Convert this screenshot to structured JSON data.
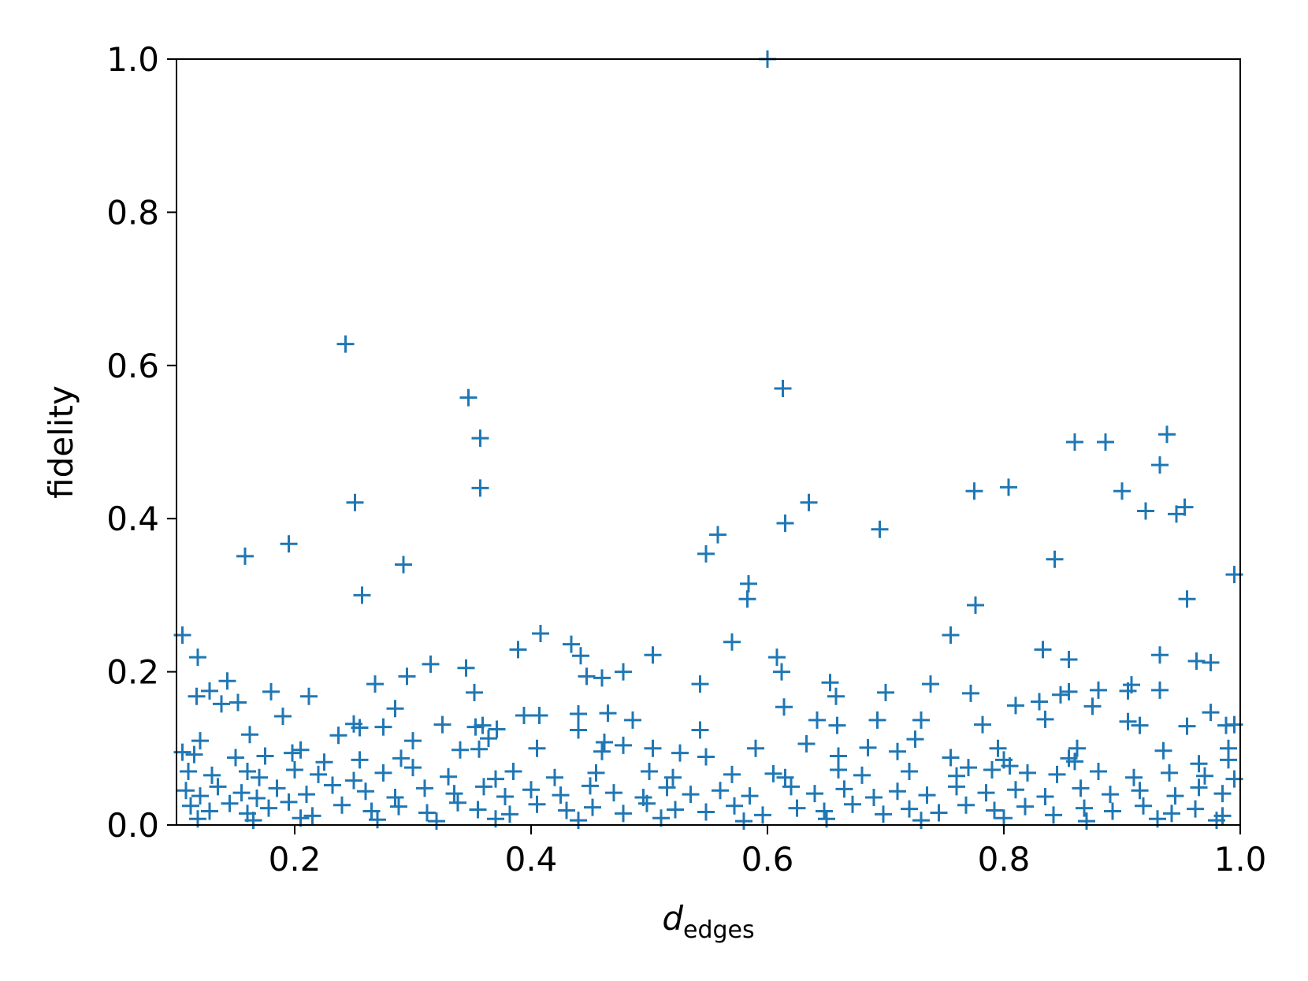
{
  "chart_data": {
    "type": "scatter",
    "title": "",
    "xlabel": "d",
    "xlabel_subscript": "edges",
    "ylabel": "fidelity",
    "xlim": [
      0.1,
      1.0
    ],
    "ylim": [
      0.0,
      1.0
    ],
    "xticks": [
      "0.2",
      "0.4",
      "0.6",
      "0.8",
      "1.0"
    ],
    "yticks": [
      "0.0",
      "0.2",
      "0.4",
      "0.6",
      "0.8",
      "1.0"
    ],
    "grid": false,
    "legend": "none",
    "marker": "plus",
    "color": "#1f77b4",
    "series": [
      {
        "points": [
          [
            0.6,
            1.0
          ],
          [
            0.243,
            0.628
          ],
          [
            0.347,
            0.558
          ],
          [
            0.613,
            0.57
          ],
          [
            0.357,
            0.505
          ],
          [
            0.86,
            0.5
          ],
          [
            0.886,
            0.5
          ],
          [
            0.938,
            0.51
          ],
          [
            0.932,
            0.47
          ],
          [
            0.357,
            0.44
          ],
          [
            0.251,
            0.421
          ],
          [
            0.635,
            0.421
          ],
          [
            0.775,
            0.436
          ],
          [
            0.804,
            0.441
          ],
          [
            0.9,
            0.436
          ],
          [
            0.946,
            0.406
          ],
          [
            0.953,
            0.415
          ],
          [
            0.92,
            0.41
          ],
          [
            0.615,
            0.394
          ],
          [
            0.695,
            0.386
          ],
          [
            0.558,
            0.379
          ],
          [
            0.548,
            0.354
          ],
          [
            0.158,
            0.351
          ],
          [
            0.195,
            0.367
          ],
          [
            0.292,
            0.34
          ],
          [
            0.843,
            0.347
          ],
          [
            0.995,
            0.327
          ],
          [
            0.584,
            0.315
          ],
          [
            0.583,
            0.295
          ],
          [
            0.257,
            0.3
          ],
          [
            0.776,
            0.287
          ],
          [
            0.955,
            0.295
          ],
          [
            0.105,
            0.248
          ],
          [
            0.408,
            0.25
          ],
          [
            0.57,
            0.239
          ],
          [
            0.755,
            0.248
          ],
          [
            0.118,
            0.219
          ],
          [
            0.434,
            0.236
          ],
          [
            0.442,
            0.221
          ],
          [
            0.389,
            0.229
          ],
          [
            0.503,
            0.222
          ],
          [
            0.608,
            0.219
          ],
          [
            0.833,
            0.229
          ],
          [
            0.855,
            0.216
          ],
          [
            0.932,
            0.222
          ],
          [
            0.963,
            0.214
          ],
          [
            0.975,
            0.212
          ],
          [
            0.315,
            0.21
          ],
          [
            0.345,
            0.205
          ],
          [
            0.612,
            0.2
          ],
          [
            0.478,
            0.2
          ],
          [
            0.46,
            0.192
          ],
          [
            0.447,
            0.194
          ],
          [
            0.295,
            0.194
          ],
          [
            0.143,
            0.188
          ],
          [
            0.543,
            0.184
          ],
          [
            0.653,
            0.186
          ],
          [
            0.738,
            0.184
          ],
          [
            0.908,
            0.183
          ],
          [
            0.117,
            0.168
          ],
          [
            0.128,
            0.175
          ],
          [
            0.138,
            0.158
          ],
          [
            0.152,
            0.16
          ],
          [
            0.18,
            0.174
          ],
          [
            0.212,
            0.168
          ],
          [
            0.268,
            0.184
          ],
          [
            0.352,
            0.173
          ],
          [
            0.658,
            0.168
          ],
          [
            0.7,
            0.173
          ],
          [
            0.772,
            0.172
          ],
          [
            0.848,
            0.17
          ],
          [
            0.855,
            0.174
          ],
          [
            0.88,
            0.176
          ],
          [
            0.905,
            0.175
          ],
          [
            0.932,
            0.176
          ],
          [
            0.614,
            0.154
          ],
          [
            0.81,
            0.156
          ],
          [
            0.83,
            0.161
          ],
          [
            0.875,
            0.155
          ],
          [
            0.975,
            0.147
          ],
          [
            0.285,
            0.152
          ],
          [
            0.19,
            0.142
          ],
          [
            0.394,
            0.143
          ],
          [
            0.407,
            0.143
          ],
          [
            0.44,
            0.145
          ],
          [
            0.465,
            0.146
          ],
          [
            0.486,
            0.137
          ],
          [
            0.642,
            0.137
          ],
          [
            0.659,
            0.13
          ],
          [
            0.693,
            0.137
          ],
          [
            0.73,
            0.137
          ],
          [
            0.782,
            0.131
          ],
          [
            0.835,
            0.138
          ],
          [
            0.905,
            0.135
          ],
          [
            0.915,
            0.13
          ],
          [
            0.955,
            0.129
          ],
          [
            0.988,
            0.13
          ],
          [
            0.995,
            0.131
          ],
          [
            0.25,
            0.132
          ],
          [
            0.255,
            0.127
          ],
          [
            0.275,
            0.128
          ],
          [
            0.325,
            0.131
          ],
          [
            0.353,
            0.128
          ],
          [
            0.359,
            0.13
          ],
          [
            0.371,
            0.125
          ],
          [
            0.44,
            0.124
          ],
          [
            0.543,
            0.124
          ],
          [
            0.725,
            0.112
          ],
          [
            0.12,
            0.11
          ],
          [
            0.162,
            0.118
          ],
          [
            0.237,
            0.117
          ],
          [
            0.3,
            0.11
          ],
          [
            0.364,
            0.113
          ],
          [
            0.462,
            0.108
          ],
          [
            0.478,
            0.104
          ],
          [
            0.503,
            0.1
          ],
          [
            0.59,
            0.1
          ],
          [
            0.633,
            0.106
          ],
          [
            0.685,
            0.101
          ],
          [
            0.795,
            0.1
          ],
          [
            0.862,
            0.1
          ],
          [
            0.935,
            0.097
          ],
          [
            0.99,
            0.1
          ],
          [
            0.105,
            0.095
          ],
          [
            0.115,
            0.092
          ],
          [
            0.15,
            0.088
          ],
          [
            0.175,
            0.09
          ],
          [
            0.198,
            0.094
          ],
          [
            0.205,
            0.098
          ],
          [
            0.225,
            0.082
          ],
          [
            0.255,
            0.085
          ],
          [
            0.29,
            0.087
          ],
          [
            0.34,
            0.098
          ],
          [
            0.356,
            0.099
          ],
          [
            0.405,
            0.1
          ],
          [
            0.46,
            0.096
          ],
          [
            0.526,
            0.094
          ],
          [
            0.548,
            0.089
          ],
          [
            0.605,
            0.067
          ],
          [
            0.66,
            0.09
          ],
          [
            0.71,
            0.096
          ],
          [
            0.755,
            0.088
          ],
          [
            0.77,
            0.075
          ],
          [
            0.8,
            0.085
          ],
          [
            0.805,
            0.077
          ],
          [
            0.855,
            0.087
          ],
          [
            0.86,
            0.083
          ],
          [
            0.965,
            0.08
          ],
          [
            0.99,
            0.085
          ],
          [
            0.11,
            0.07
          ],
          [
            0.13,
            0.065
          ],
          [
            0.16,
            0.07
          ],
          [
            0.17,
            0.062
          ],
          [
            0.2,
            0.072
          ],
          [
            0.22,
            0.066
          ],
          [
            0.25,
            0.058
          ],
          [
            0.275,
            0.068
          ],
          [
            0.3,
            0.075
          ],
          [
            0.33,
            0.063
          ],
          [
            0.37,
            0.06
          ],
          [
            0.385,
            0.07
          ],
          [
            0.42,
            0.062
          ],
          [
            0.455,
            0.068
          ],
          [
            0.5,
            0.07
          ],
          [
            0.52,
            0.062
          ],
          [
            0.57,
            0.066
          ],
          [
            0.615,
            0.062
          ],
          [
            0.66,
            0.072
          ],
          [
            0.68,
            0.065
          ],
          [
            0.72,
            0.07
          ],
          [
            0.76,
            0.064
          ],
          [
            0.79,
            0.072
          ],
          [
            0.82,
            0.068
          ],
          [
            0.845,
            0.066
          ],
          [
            0.88,
            0.07
          ],
          [
            0.91,
            0.062
          ],
          [
            0.94,
            0.068
          ],
          [
            0.97,
            0.064
          ],
          [
            0.995,
            0.06
          ],
          [
            0.108,
            0.045
          ],
          [
            0.12,
            0.038
          ],
          [
            0.135,
            0.05
          ],
          [
            0.155,
            0.042
          ],
          [
            0.168,
            0.035
          ],
          [
            0.185,
            0.048
          ],
          [
            0.21,
            0.04
          ],
          [
            0.232,
            0.052
          ],
          [
            0.26,
            0.044
          ],
          [
            0.285,
            0.036
          ],
          [
            0.31,
            0.048
          ],
          [
            0.335,
            0.041
          ],
          [
            0.36,
            0.05
          ],
          [
            0.378,
            0.037
          ],
          [
            0.4,
            0.046
          ],
          [
            0.425,
            0.039
          ],
          [
            0.45,
            0.051
          ],
          [
            0.47,
            0.042
          ],
          [
            0.495,
            0.036
          ],
          [
            0.515,
            0.049
          ],
          [
            0.535,
            0.04
          ],
          [
            0.56,
            0.045
          ],
          [
            0.585,
            0.038
          ],
          [
            0.62,
            0.05
          ],
          [
            0.64,
            0.041
          ],
          [
            0.665,
            0.047
          ],
          [
            0.69,
            0.036
          ],
          [
            0.71,
            0.044
          ],
          [
            0.735,
            0.039
          ],
          [
            0.76,
            0.05
          ],
          [
            0.785,
            0.042
          ],
          [
            0.81,
            0.046
          ],
          [
            0.835,
            0.037
          ],
          [
            0.865,
            0.048
          ],
          [
            0.89,
            0.04
          ],
          [
            0.915,
            0.045
          ],
          [
            0.945,
            0.038
          ],
          [
            0.965,
            0.049
          ],
          [
            0.985,
            0.041
          ],
          [
            0.112,
            0.025
          ],
          [
            0.128,
            0.018
          ],
          [
            0.145,
            0.028
          ],
          [
            0.16,
            0.015
          ],
          [
            0.178,
            0.022
          ],
          [
            0.195,
            0.03
          ],
          [
            0.215,
            0.012
          ],
          [
            0.24,
            0.026
          ],
          [
            0.265,
            0.018
          ],
          [
            0.288,
            0.024
          ],
          [
            0.312,
            0.016
          ],
          [
            0.338,
            0.029
          ],
          [
            0.355,
            0.02
          ],
          [
            0.382,
            0.014
          ],
          [
            0.405,
            0.027
          ],
          [
            0.43,
            0.019
          ],
          [
            0.452,
            0.023
          ],
          [
            0.478,
            0.015
          ],
          [
            0.498,
            0.028
          ],
          [
            0.522,
            0.02
          ],
          [
            0.548,
            0.017
          ],
          [
            0.572,
            0.025
          ],
          [
            0.596,
            0.013
          ],
          [
            0.625,
            0.022
          ],
          [
            0.648,
            0.018
          ],
          [
            0.672,
            0.027
          ],
          [
            0.698,
            0.014
          ],
          [
            0.72,
            0.021
          ],
          [
            0.745,
            0.016
          ],
          [
            0.768,
            0.026
          ],
          [
            0.792,
            0.019
          ],
          [
            0.818,
            0.024
          ],
          [
            0.842,
            0.013
          ],
          [
            0.868,
            0.022
          ],
          [
            0.892,
            0.018
          ],
          [
            0.918,
            0.025
          ],
          [
            0.942,
            0.015
          ],
          [
            0.962,
            0.021
          ],
          [
            0.985,
            0.012
          ],
          [
            0.118,
            0.008
          ],
          [
            0.165,
            0.006
          ],
          [
            0.205,
            0.009
          ],
          [
            0.27,
            0.007
          ],
          [
            0.32,
            0.005
          ],
          [
            0.37,
            0.008
          ],
          [
            0.44,
            0.006
          ],
          [
            0.51,
            0.009
          ],
          [
            0.58,
            0.005
          ],
          [
            0.65,
            0.008
          ],
          [
            0.73,
            0.006
          ],
          [
            0.8,
            0.009
          ],
          [
            0.87,
            0.005
          ],
          [
            0.93,
            0.008
          ],
          [
            0.98,
            0.006
          ]
        ]
      }
    ]
  }
}
